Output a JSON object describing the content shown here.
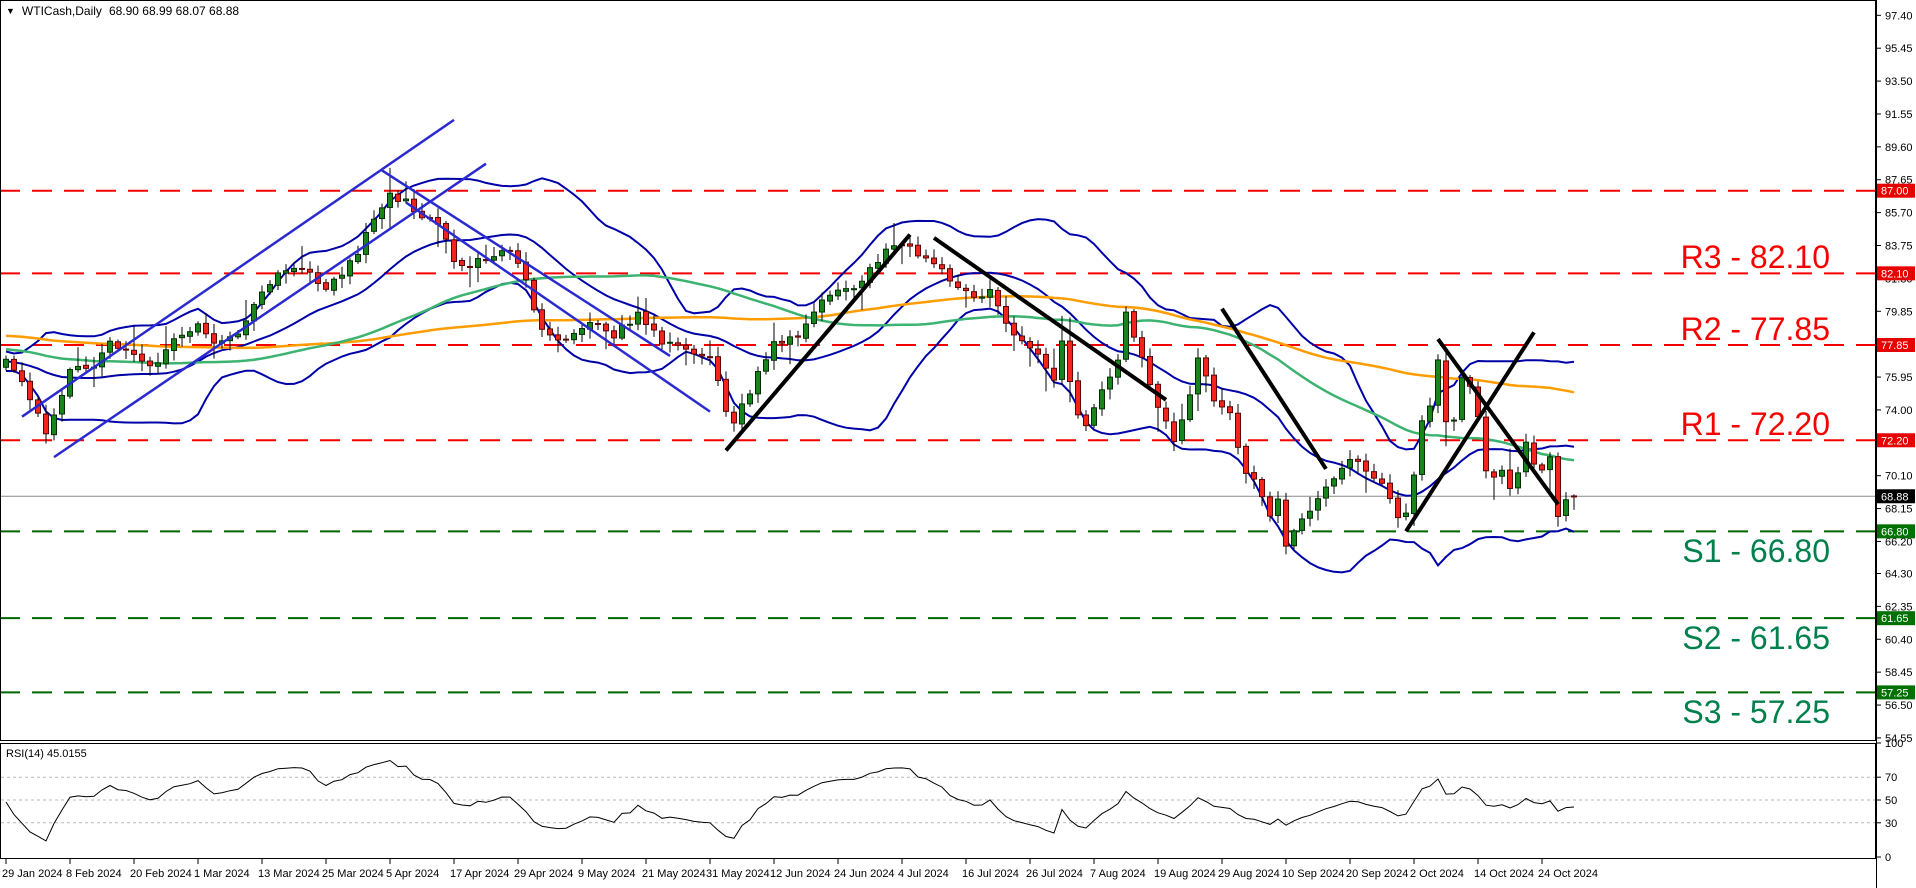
{
  "title": {
    "symbol_period": "WTICash,Daily",
    "ohlc": "68.90 68.99 68.07 68.88"
  },
  "price_axis": {
    "ticks": [
      "97.40",
      "95.45",
      "93.50",
      "91.55",
      "89.60",
      "87.65",
      "85.70",
      "83.75",
      "81.80",
      "79.85",
      "75.95",
      "74.00",
      "70.10",
      "68.15",
      "66.20",
      "64.30",
      "62.35",
      "60.40",
      "58.45",
      "56.50",
      "54.55"
    ]
  },
  "levels": [
    {
      "name": "resistance-87",
      "value": 87.0,
      "tag": "87.00",
      "label": null,
      "kind": "resistance",
      "line_color": "#f40000",
      "tag_color": "#e80000"
    },
    {
      "name": "R3",
      "value": 82.1,
      "tag": "82.10",
      "label": "R3 - 82.10",
      "kind": "resistance",
      "line_color": "#f40000",
      "tag_color": "#e80000"
    },
    {
      "name": "R2",
      "value": 77.85,
      "tag": "77.85",
      "label": "R2 - 77.85",
      "kind": "resistance",
      "line_color": "#f40000",
      "tag_color": "#e80000"
    },
    {
      "name": "R1",
      "value": 72.2,
      "tag": "72.20",
      "label": "R1 - 72.20",
      "kind": "resistance",
      "line_color": "#f40000",
      "tag_color": "#e80000"
    },
    {
      "name": "S1",
      "value": 66.8,
      "tag": "66.80",
      "label": "S1 - 66.80",
      "kind": "support",
      "line_color": "#006600",
      "tag_color": "#007000"
    },
    {
      "name": "S2",
      "value": 61.65,
      "tag": "61.65",
      "label": "S2 - 61.65",
      "kind": "support",
      "line_color": "#006600",
      "tag_color": "#007000"
    },
    {
      "name": "S3",
      "value": 57.25,
      "tag": "57.25",
      "label": "S3 - 57.25",
      "kind": "support",
      "line_color": "#006600",
      "tag_color": "#007000"
    }
  ],
  "current_price": {
    "value": 68.88,
    "tag": "68.88",
    "line_color": "#8a8a8a",
    "tag_color": "#000000"
  },
  "x_axis": {
    "labels": [
      "29 Jan 2024",
      "8 Feb 2024",
      "20 Feb 2024",
      "1 Mar 2024",
      "13 Mar 2024",
      "25 Mar 2024",
      "5 Apr 2024",
      "17 Apr 2024",
      "29 Apr 2024",
      "9 May 2024",
      "21 May 2024",
      "31 May 2024",
      "12 Jun 2024",
      "24 Jun 2024",
      "4 Jul 2024",
      "16 Jul 2024",
      "26 Jul 2024",
      "7 Aug 2024",
      "19 Aug 2024",
      "29 Aug 2024",
      "10 Sep 2024",
      "20 Sep 2024",
      "2 Oct 2024",
      "14 Oct 2024",
      "24 Oct 2024"
    ]
  },
  "rsi_panel": {
    "label": "RSI(14) 45.0155",
    "period": 14,
    "last_value": 45.0155,
    "ticks": [
      "100",
      "70",
      "50",
      "30",
      "0"
    ],
    "tick_values": [
      100,
      70,
      50,
      30,
      0
    ],
    "dashed_levels": [
      70,
      50,
      30
    ]
  },
  "chart_data": {
    "type": "candlestick",
    "symbol": "WTICash",
    "timeframe": "Daily",
    "title": "WTICash,Daily",
    "last_bar": {
      "open": 68.9,
      "high": 68.99,
      "low": 68.07,
      "close": 68.88
    },
    "y_range_visible": [
      54.55,
      98.3
    ],
    "x_label_step_bars": 8,
    "grid": "off",
    "close_anchors": [
      [
        0,
        76.8
      ],
      [
        2,
        75.5
      ],
      [
        5,
        72.6
      ],
      [
        8,
        76.3
      ],
      [
        11,
        76.6
      ],
      [
        13,
        78.0
      ],
      [
        16,
        77.5
      ],
      [
        18,
        76.4
      ],
      [
        21,
        78.2
      ],
      [
        24,
        79.1
      ],
      [
        26,
        78.2
      ],
      [
        29,
        78.6
      ],
      [
        32,
        81.0
      ],
      [
        34,
        82.2
      ],
      [
        37,
        82.6
      ],
      [
        40,
        81.3
      ],
      [
        42,
        81.9
      ],
      [
        44,
        83.3
      ],
      [
        46,
        85.4
      ],
      [
        48,
        86.7
      ],
      [
        50,
        86.3
      ],
      [
        52,
        85.4
      ],
      [
        54,
        85.0
      ],
      [
        56,
        83.0
      ],
      [
        58,
        82.4
      ],
      [
        60,
        83.1
      ],
      [
        63,
        83.5
      ],
      [
        65,
        81.6
      ],
      [
        67,
        78.6
      ],
      [
        70,
        78.3
      ],
      [
        73,
        79.2
      ],
      [
        76,
        78.4
      ],
      [
        79,
        79.6
      ],
      [
        82,
        78.0
      ],
      [
        85,
        77.4
      ],
      [
        88,
        77.2
      ],
      [
        90,
        74.1
      ],
      [
        91,
        73.2
      ],
      [
        93,
        75.1
      ],
      [
        96,
        78.0
      ],
      [
        99,
        78.4
      ],
      [
        102,
        80.3
      ],
      [
        104,
        80.9
      ],
      [
        107,
        81.5
      ],
      [
        109,
        82.9
      ],
      [
        111,
        83.8
      ],
      [
        113,
        83.9
      ],
      [
        115,
        82.8
      ],
      [
        117,
        82.5
      ],
      [
        119,
        81.2
      ],
      [
        121,
        80.6
      ],
      [
        123,
        81.0
      ],
      [
        125,
        79.2
      ],
      [
        127,
        78.0
      ],
      [
        129,
        77.1
      ],
      [
        131,
        75.8
      ],
      [
        132,
        78.0
      ],
      [
        134,
        73.5
      ],
      [
        135,
        72.9
      ],
      [
        137,
        75.2
      ],
      [
        139,
        76.8
      ],
      [
        140,
        79.9
      ],
      [
        142,
        77.0
      ],
      [
        144,
        74.4
      ],
      [
        146,
        71.9
      ],
      [
        148,
        75.1
      ],
      [
        149,
        77.3
      ],
      [
        151,
        74.5
      ],
      [
        153,
        73.6
      ],
      [
        155,
        70.3
      ],
      [
        157,
        69.1
      ],
      [
        158,
        67.7
      ],
      [
        159,
        68.7
      ],
      [
        160,
        65.9
      ],
      [
        162,
        67.3
      ],
      [
        164,
        68.9
      ],
      [
        166,
        70.1
      ],
      [
        168,
        71.0
      ],
      [
        170,
        70.5
      ],
      [
        172,
        69.7
      ],
      [
        174,
        67.8
      ],
      [
        175,
        68.1
      ],
      [
        176,
        70.1
      ],
      [
        177,
        73.6
      ],
      [
        178,
        74.3
      ],
      [
        179,
        77.0
      ],
      [
        180,
        73.5
      ],
      [
        181,
        73.2
      ],
      [
        182,
        75.8
      ],
      [
        183,
        75.5
      ],
      [
        184,
        73.8
      ],
      [
        185,
        70.6
      ],
      [
        186,
        70.2
      ],
      [
        187,
        70.6
      ],
      [
        188,
        69.2
      ],
      [
        189,
        70.1
      ],
      [
        190,
        72.0
      ],
      [
        191,
        70.8
      ],
      [
        192,
        70.2
      ],
      [
        193,
        71.3
      ],
      [
        194,
        67.5
      ],
      [
        195,
        68.6
      ],
      [
        196,
        68.88
      ]
    ],
    "prehistory_anchors": [
      [
        -110,
        79.0
      ],
      [
        -80,
        79.5
      ],
      [
        -55,
        78.8
      ],
      [
        -35,
        78.2
      ],
      [
        -20,
        77.5
      ],
      [
        -10,
        76.8
      ],
      [
        -1,
        76.8
      ]
    ],
    "overlays": {
      "bollinger": {
        "period": 20,
        "deviation": 2,
        "color": "#0000a8"
      },
      "ma_orange": {
        "type": "sma",
        "period": 100,
        "color": "#ff9c00"
      },
      "ma_green": {
        "type": "sma",
        "period": 50,
        "color": "#3cb371"
      }
    },
    "trendlines_blue": [
      {
        "pts": [
          [
            2,
            73.6
          ],
          [
            56,
            91.2
          ]
        ]
      },
      {
        "pts": [
          [
            6,
            71.2
          ],
          [
            60,
            88.6
          ]
        ]
      },
      {
        "pts": [
          [
            47,
            88.2
          ],
          [
            83,
            77.2
          ]
        ]
      },
      {
        "pts": [
          [
            50,
            86.3
          ],
          [
            88,
            73.9
          ]
        ]
      }
    ],
    "trendlines_black": [
      {
        "pts": [
          [
            90,
            71.6
          ],
          [
            113,
            84.4
          ]
        ]
      },
      {
        "pts": [
          [
            116,
            84.2
          ],
          [
            145,
            74.6
          ]
        ]
      },
      {
        "pts": [
          [
            152,
            80.0
          ],
          [
            165,
            70.5
          ]
        ]
      },
      {
        "pts": [
          [
            175,
            66.8
          ],
          [
            191,
            78.6
          ]
        ]
      },
      {
        "pts": [
          [
            179,
            78.2
          ],
          [
            194,
            68.4
          ]
        ]
      }
    ],
    "candle_colors": {
      "bull_fill": "#17851b",
      "bull_stroke": "#033003",
      "bear_fill": "#f2241c",
      "bear_stroke": "#5e0503"
    },
    "trend_colors": {
      "blue": "#2a2ad0",
      "black": "#000000"
    }
  }
}
